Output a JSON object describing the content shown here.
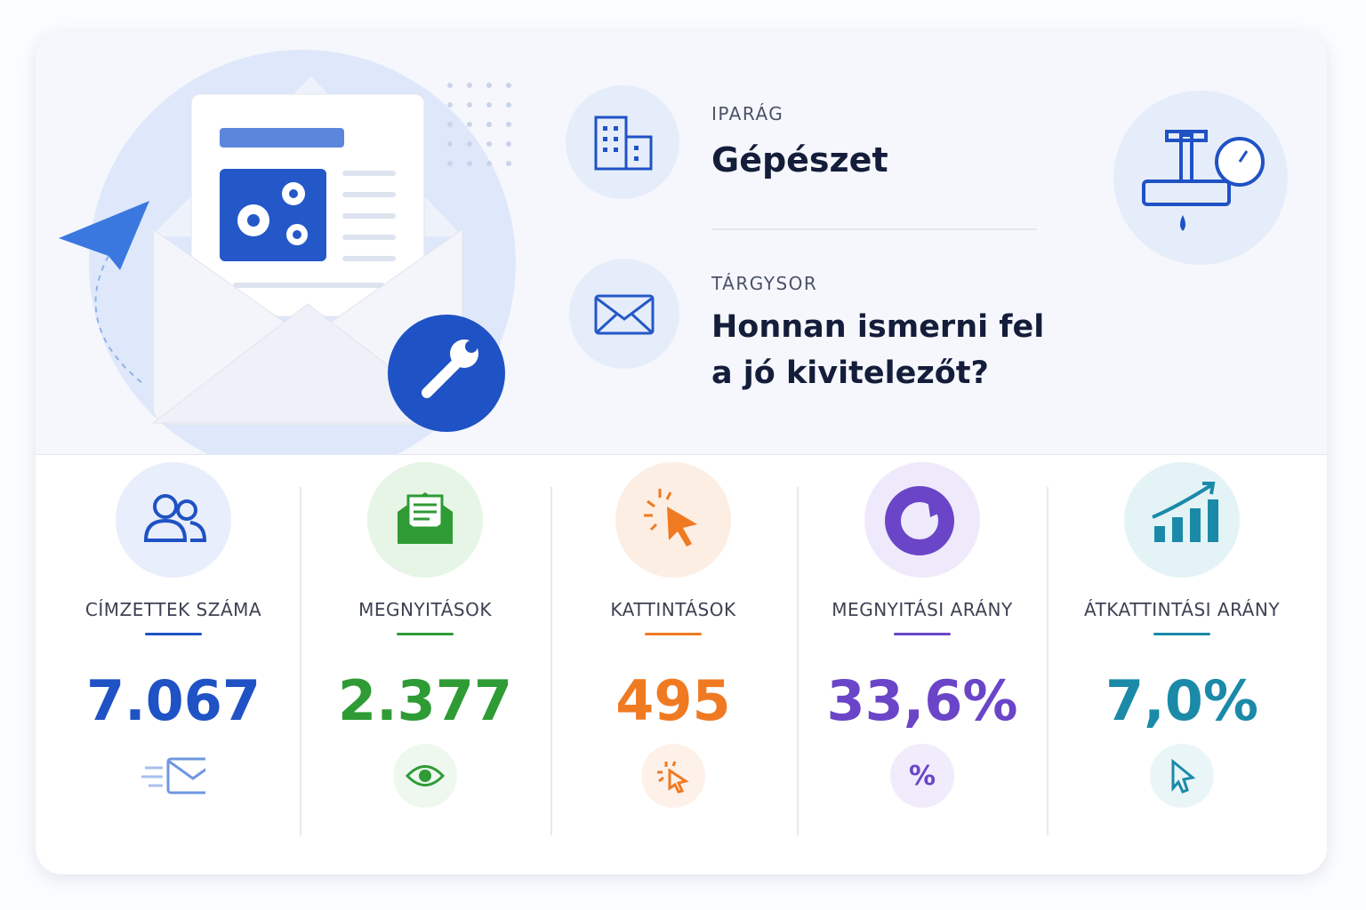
{
  "header": {
    "industry": {
      "label": "IPARÁG",
      "value": "Gépészet"
    },
    "subject": {
      "label": "TÁRGYSOR",
      "value": "Honnan ismerni fel a jó kivitelezőt?"
    }
  },
  "metrics": [
    {
      "label": "CÍMZETTEK SZÁMA",
      "value": "7.067"
    },
    {
      "label": "MEGNYITÁSOK",
      "value": "2.377"
    },
    {
      "label": "KATTINTÁSOK",
      "value": "495"
    },
    {
      "label": "MEGNYITÁSI ARÁNY",
      "value": "33,6%",
      "badge": "%"
    },
    {
      "label": "ÁTKATTINTÁSI ARÁNY",
      "value": "7,0%"
    }
  ]
}
